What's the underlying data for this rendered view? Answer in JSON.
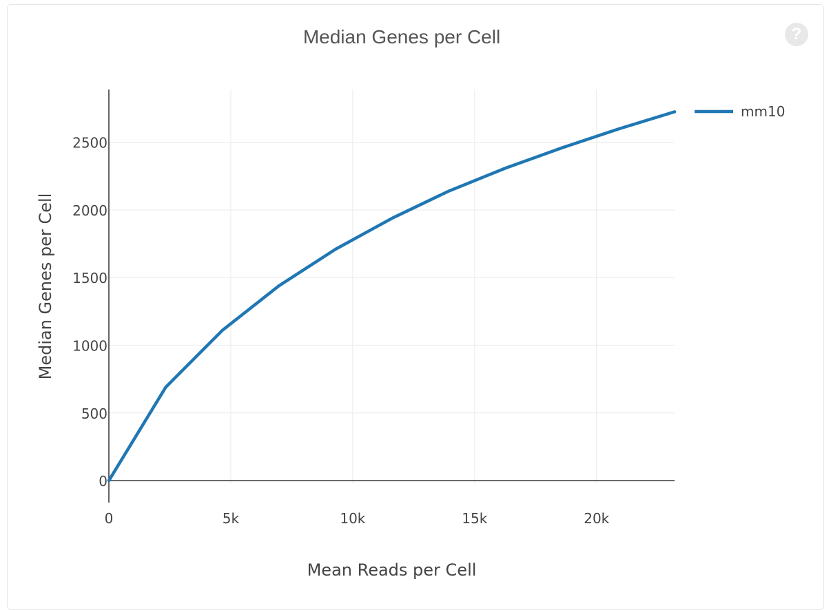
{
  "help_icon": {
    "glyph": "?"
  },
  "chart_data": {
    "type": "line",
    "title": "Median Genes per Cell",
    "xlabel": "Mean Reads per Cell",
    "ylabel": "Median Genes per Cell",
    "xlim": [
      0,
      23200
    ],
    "ylim": [
      -20,
      2890
    ],
    "x_ticks": [
      0,
      5000,
      10000,
      15000,
      20000
    ],
    "x_tick_labels": [
      "0",
      "5k",
      "10k",
      "15k",
      "20k"
    ],
    "y_ticks": [
      0,
      500,
      1000,
      1500,
      2000,
      2500
    ],
    "y_tick_labels": [
      "0",
      "500",
      "1000",
      "1500",
      "2000",
      "2500"
    ],
    "grid": true,
    "legend_position": "top-right",
    "series": [
      {
        "name": "mm10",
        "color": "#1f77b4",
        "x": [
          0,
          2330,
          4650,
          6980,
          9300,
          11630,
          13950,
          16280,
          18600,
          20930,
          23200
        ],
        "y": [
          0,
          690,
          1110,
          1440,
          1710,
          1940,
          2140,
          2310,
          2460,
          2600,
          2725
        ]
      }
    ]
  }
}
